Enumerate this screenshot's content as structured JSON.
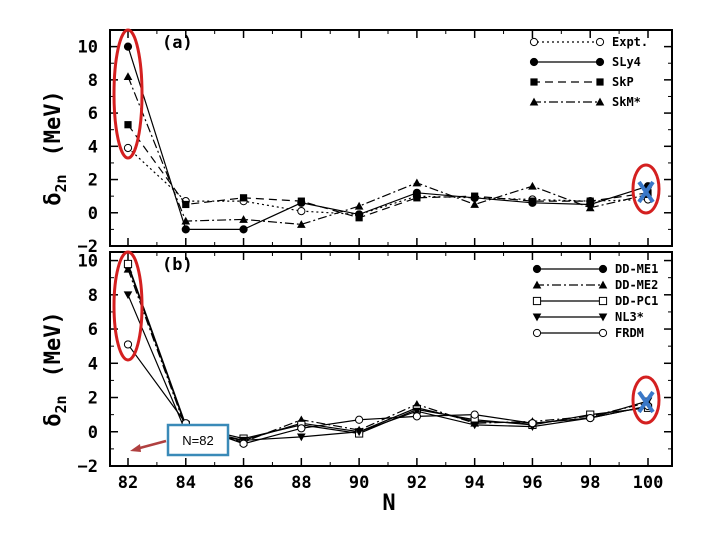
{
  "colors": {
    "highlight": "#d42020",
    "cross": "#3a78c8",
    "callout_border": "#3a8ab8",
    "arrow": "#b04040"
  },
  "chart_data": [
    {
      "type": "line",
      "panel_label": "(a)",
      "ylabel_symbol": "δ",
      "ylabel_sub": "2n",
      "ylabel_unit": "(MeV)",
      "x": [
        82,
        84,
        86,
        88,
        90,
        92,
        94,
        96,
        98,
        100
      ],
      "ylim": [
        -2,
        11
      ],
      "yticks": [
        "10",
        "8",
        "6",
        "4",
        "2",
        "0",
        "−2"
      ],
      "ytick_values": [
        10,
        8,
        6,
        4,
        2,
        0,
        -2
      ],
      "legend_position": "top-right",
      "series": [
        {
          "name": "Expt.",
          "marker": "open-circle",
          "dash": "2,3",
          "values": [
            3.9,
            0.7,
            0.7,
            0.1,
            -0.1,
            1.0,
            0.9,
            0.8,
            0.7,
            0.8
          ]
        },
        {
          "name": "SLy4",
          "marker": "filled-circle",
          "dash": "",
          "values": [
            10.0,
            -1.0,
            -1.0,
            0.6,
            -0.1,
            1.2,
            0.9,
            0.6,
            0.5,
            1.6
          ]
        },
        {
          "name": "SkP",
          "marker": "filled-square",
          "dash": "8,5",
          "values": [
            5.3,
            0.5,
            0.9,
            0.7,
            -0.3,
            0.9,
            1.0,
            0.7,
            0.7,
            1.2
          ]
        },
        {
          "name": "SkM*",
          "marker": "filled-triangle",
          "dash": "9,3,2,3",
          "values": [
            8.2,
            -0.5,
            -0.4,
            -0.7,
            0.4,
            1.8,
            0.5,
            1.6,
            0.3,
            1.1
          ]
        }
      ]
    },
    {
      "type": "line",
      "panel_label": "(b)",
      "ylabel_symbol": "δ",
      "ylabel_sub": "2n",
      "ylabel_unit": "(MeV)",
      "x": [
        82,
        84,
        86,
        88,
        90,
        92,
        94,
        96,
        98,
        100
      ],
      "xticks": [
        "82",
        "84",
        "86",
        "88",
        "90",
        "92",
        "94",
        "96",
        "98",
        "100"
      ],
      "xlabel": "N",
      "ylim": [
        -2,
        10.5
      ],
      "yticks": [
        "10",
        "8",
        "6",
        "4",
        "2",
        "0",
        "−2"
      ],
      "ytick_values": [
        10,
        8,
        6,
        4,
        2,
        0,
        -2
      ],
      "legend_position": "top-right",
      "series": [
        {
          "name": "DD-ME1",
          "marker": "filled-circle",
          "dash": "",
          "values": [
            9.7,
            0.3,
            -0.5,
            0.5,
            0.0,
            1.4,
            0.6,
            0.5,
            0.8,
            1.5
          ]
        },
        {
          "name": "DD-ME2",
          "marker": "filled-triangle",
          "dash": "9,3,2,3",
          "values": [
            9.5,
            0.2,
            -0.6,
            0.7,
            0.1,
            1.6,
            0.5,
            0.6,
            0.9,
            1.7
          ]
        },
        {
          "name": "DD-PC1",
          "marker": "open-square",
          "dash": "",
          "values": [
            9.8,
            0.4,
            -0.4,
            0.4,
            -0.1,
            1.3,
            0.7,
            0.4,
            1.0,
            1.4
          ]
        },
        {
          "name": "NL3*",
          "marker": "filled-triangle-down",
          "dash": "",
          "values": [
            8.0,
            0.0,
            -0.5,
            -0.3,
            0.0,
            1.2,
            0.4,
            0.3,
            0.8,
            1.8
          ]
        },
        {
          "name": "FRDM",
          "marker": "open-circle",
          "dash": "",
          "values": [
            5.1,
            0.5,
            -0.7,
            0.2,
            0.7,
            0.9,
            1.0,
            0.5,
            0.8,
            1.5
          ]
        }
      ],
      "annotation": "N=82"
    }
  ]
}
